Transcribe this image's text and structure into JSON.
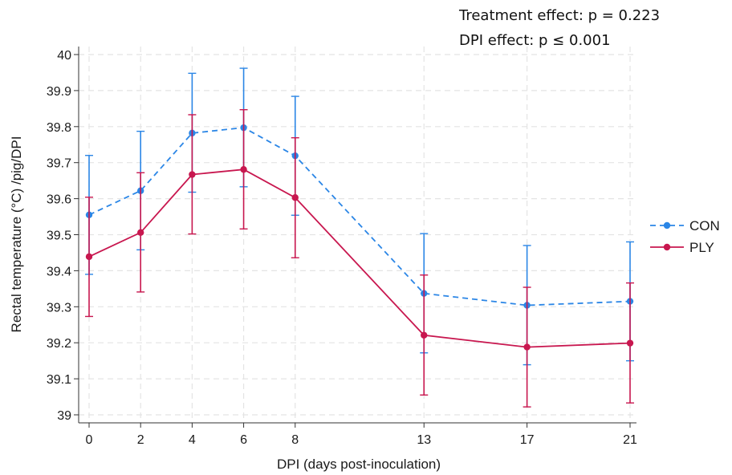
{
  "chart_data": {
    "type": "line",
    "title": "",
    "xlabel": "DPI (days post-inoculation)",
    "ylabel": "Rectal temperature (°C) /pig/DPI",
    "x": [
      0,
      2,
      4,
      6,
      8,
      13,
      17,
      21
    ],
    "x_ticks": [
      "0",
      "2",
      "4",
      "6",
      "8",
      "13",
      "17",
      "21"
    ],
    "y_ticks": [
      "39",
      "39.1",
      "39.2",
      "39.3",
      "39.4",
      "39.5",
      "39.6",
      "39.7",
      "39.8",
      "39.9",
      "40"
    ],
    "xlim": [
      -0.4,
      21.4
    ],
    "ylim": [
      38.97,
      40.01
    ],
    "grid": true,
    "legend_position": "right",
    "annotations": [
      "Treatment effect: p = 0.223",
      "DPI effect: p ≤ 0.001"
    ],
    "series": [
      {
        "name": "CON",
        "color": "#2b86e6",
        "line_style": "dashed",
        "values": [
          39.555,
          39.622,
          39.782,
          39.797,
          39.719,
          39.337,
          39.304,
          39.315
        ],
        "error_lower": [
          39.39,
          39.458,
          39.618,
          39.633,
          39.554,
          39.172,
          39.139,
          39.15
        ],
        "error_upper": [
          39.72,
          39.787,
          39.948,
          39.962,
          39.884,
          39.503,
          39.47,
          39.48
        ]
      },
      {
        "name": "PLY",
        "color": "#c8174f",
        "line_style": "solid",
        "values": [
          39.439,
          39.506,
          39.667,
          39.681,
          39.603,
          39.221,
          39.188,
          39.199
        ],
        "error_lower": [
          39.273,
          39.341,
          39.502,
          39.516,
          39.436,
          39.055,
          39.022,
          39.033
        ],
        "error_upper": [
          39.604,
          39.672,
          39.833,
          39.847,
          39.769,
          39.388,
          39.354,
          39.366
        ]
      }
    ]
  }
}
